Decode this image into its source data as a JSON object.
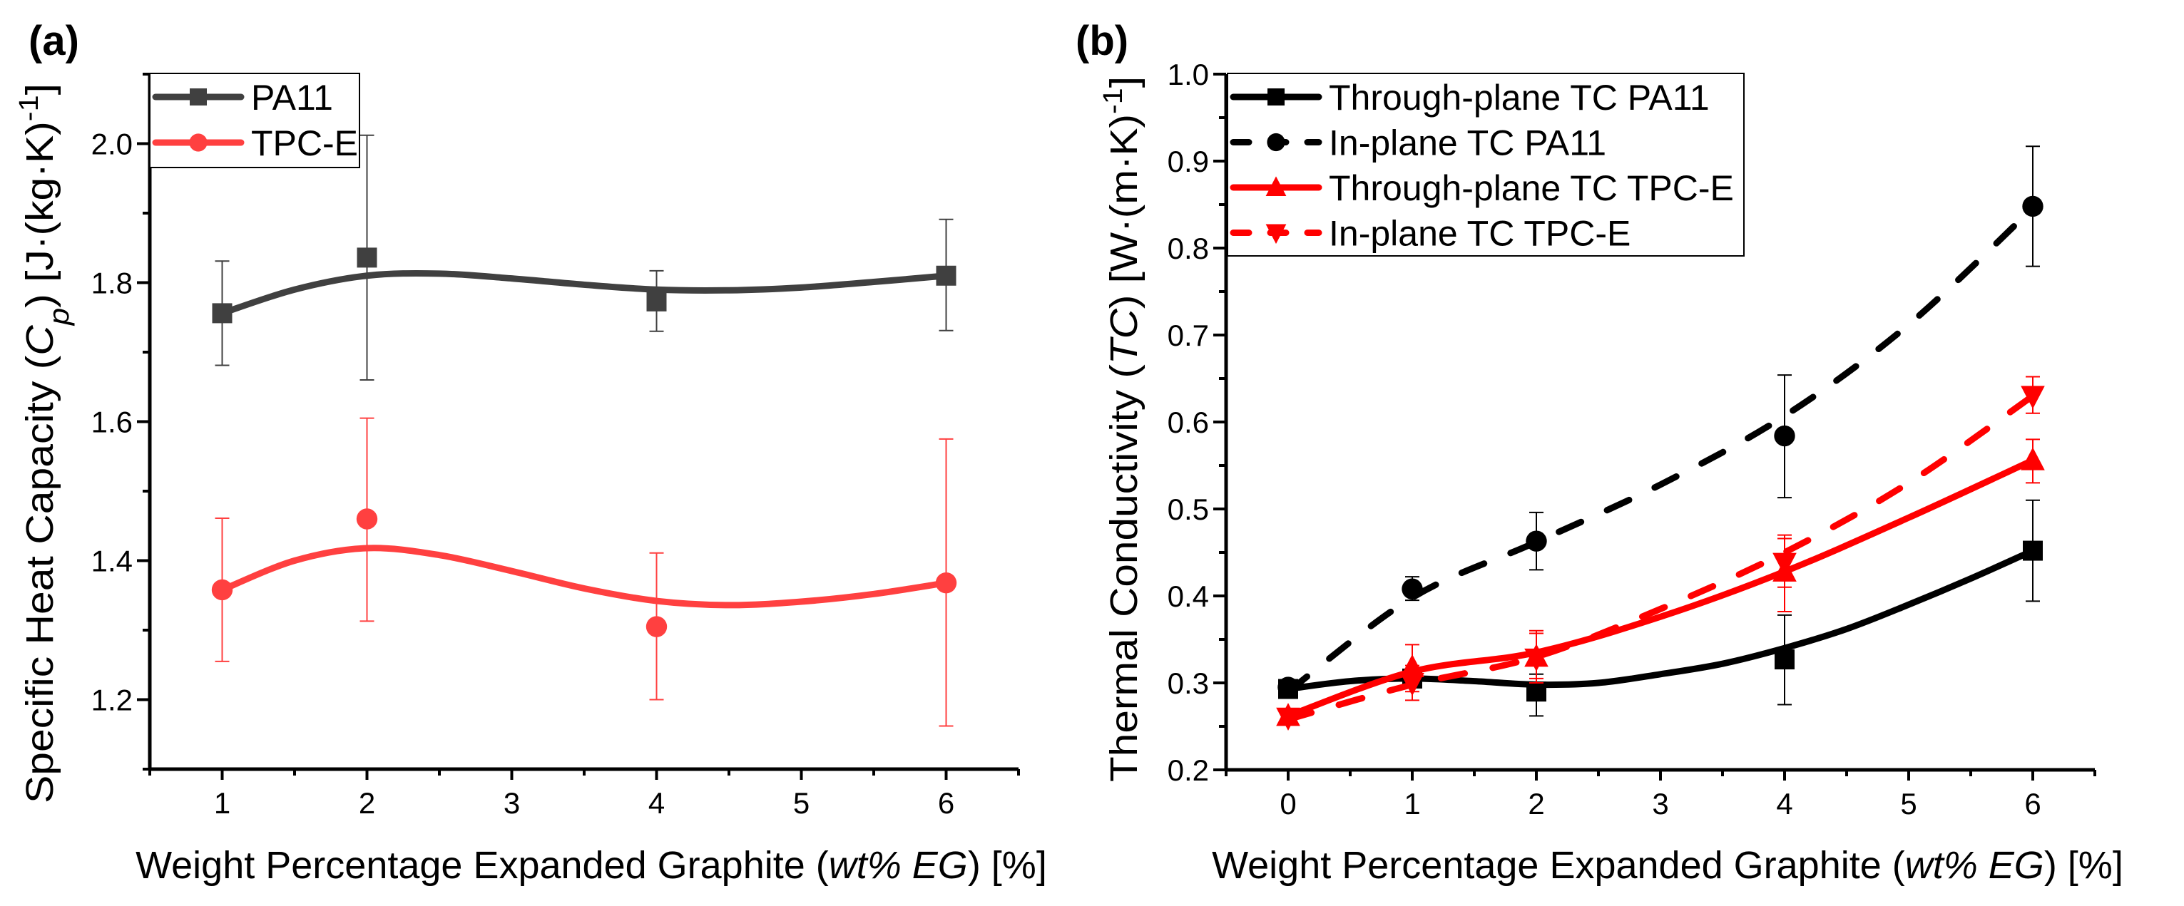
{
  "chart_data": [
    {
      "type": "line",
      "panel_label": "(a)",
      "xlabel_parts": [
        {
          "text": "Weight Percentage Expanded Graphite (",
          "style": "normal"
        },
        {
          "text": "wt% EG",
          "style": "italic"
        },
        {
          "text": ") [%]",
          "style": "normal"
        }
      ],
      "ylabel_parts": [
        {
          "text": "Specific Heat Capacity (",
          "style": "normal"
        },
        {
          "text": "C",
          "style": "italic"
        },
        {
          "text": "p",
          "style": "italic-sub"
        },
        {
          "text": ") [J·(kg·K)",
          "style": "normal"
        },
        {
          "text": "-1",
          "style": "sup"
        },
        {
          "text": "]",
          "style": "normal"
        }
      ],
      "xlim": [
        0.5,
        6.5
      ],
      "ylim": [
        1.1,
        2.1
      ],
      "xticks": [
        1,
        2,
        3,
        4,
        5,
        6
      ],
      "xtick_labels": [
        "1",
        "2",
        "3",
        "4",
        "5",
        "6"
      ],
      "yticks": [
        1.2,
        1.4,
        1.6,
        1.8,
        2.0
      ],
      "ytick_labels": [
        "1.2",
        "1.4",
        "1.6",
        "1.8",
        "2.0"
      ],
      "grid": false,
      "legend_position": "top-left",
      "series": [
        {
          "name": "PA11",
          "color": "#404040",
          "marker": "square",
          "dash": false,
          "x": [
            1,
            2,
            4,
            6
          ],
          "y": [
            1.756,
            1.836,
            1.773,
            1.81
          ],
          "err_low": [
            1.681,
            1.66,
            1.73,
            1.731
          ],
          "err_high": [
            1.831,
            2.012,
            1.817,
            1.891
          ],
          "fit_x": [
            1,
            1.5,
            2,
            2.5,
            3,
            3.5,
            4,
            4.5,
            5,
            5.5,
            6
          ],
          "fit_y": [
            1.756,
            1.79,
            1.81,
            1.813,
            1.806,
            1.797,
            1.79,
            1.789,
            1.793,
            1.801,
            1.81
          ]
        },
        {
          "name": "TPC-E",
          "color": "#ff4040",
          "marker": "circle",
          "dash": false,
          "x": [
            1,
            2,
            4,
            6
          ],
          "y": [
            1.358,
            1.46,
            1.305,
            1.368
          ],
          "err_low": [
            1.255,
            1.313,
            1.2,
            1.162
          ],
          "err_high": [
            1.461,
            1.605,
            1.411,
            1.575
          ],
          "fit_x": [
            1,
            1.5,
            2,
            2.5,
            3,
            3.5,
            4,
            4.5,
            5,
            5.5,
            6
          ],
          "fit_y": [
            1.358,
            1.4,
            1.418,
            1.408,
            1.385,
            1.36,
            1.342,
            1.336,
            1.341,
            1.352,
            1.368
          ]
        }
      ]
    },
    {
      "type": "line",
      "panel_label": "(b)",
      "xlabel_parts": [
        {
          "text": "Weight Percentage Expanded Graphite (",
          "style": "normal"
        },
        {
          "text": "wt% EG",
          "style": "italic"
        },
        {
          "text": ") [%]",
          "style": "normal"
        }
      ],
      "ylabel_parts": [
        {
          "text": "Thermal Conductivity (",
          "style": "normal"
        },
        {
          "text": "TC",
          "style": "italic"
        },
        {
          "text": ") [W·(m·K)",
          "style": "normal"
        },
        {
          "text": "-1",
          "style": "sup"
        },
        {
          "text": "]",
          "style": "normal"
        }
      ],
      "xlim": [
        -0.5,
        6.5
      ],
      "ylim": [
        0.2,
        1.0
      ],
      "xticks": [
        0,
        1,
        2,
        3,
        4,
        5,
        6
      ],
      "xtick_labels": [
        "0",
        "1",
        "2",
        "3",
        "4",
        "5",
        "6"
      ],
      "yticks": [
        0.2,
        0.3,
        0.4,
        0.5,
        0.6,
        0.7,
        0.8,
        0.9,
        1.0
      ],
      "ytick_labels": [
        "0.2",
        "0.3",
        "0.4",
        "0.5",
        "0.6",
        "0.7",
        "0.8",
        "0.9",
        "1.0"
      ],
      "grid": false,
      "legend_position": "top-left",
      "series": [
        {
          "name": "Through-plane TC PA11",
          "color": "#000000",
          "marker": "square",
          "dash": false,
          "x": [
            0,
            1,
            2,
            4,
            6
          ],
          "y": [
            0.293,
            0.305,
            0.29,
            0.327,
            0.452
          ],
          "err_low": [
            0.288,
            0.3,
            0.262,
            0.275,
            0.394
          ],
          "err_high": [
            0.298,
            0.31,
            0.31,
            0.378,
            0.51
          ],
          "fit_x": [
            0,
            0.5,
            1,
            1.5,
            2,
            2.5,
            3,
            3.5,
            4,
            4.5,
            5,
            5.5,
            6
          ],
          "fit_y": [
            0.293,
            0.302,
            0.305,
            0.302,
            0.298,
            0.3,
            0.31,
            0.322,
            0.34,
            0.362,
            0.39,
            0.42,
            0.452
          ]
        },
        {
          "name": "In-plane TC PA11",
          "color": "#000000",
          "marker": "circle",
          "dash": true,
          "x": [
            0,
            1,
            2,
            4,
            6
          ],
          "y": [
            0.295,
            0.408,
            0.463,
            0.584,
            0.848
          ],
          "err_low": [
            0.29,
            0.395,
            0.43,
            0.513,
            0.779
          ],
          "err_high": [
            0.3,
            0.422,
            0.496,
            0.654,
            0.917
          ],
          "fit_x": [
            0,
            1,
            2,
            3,
            4,
            5,
            6
          ],
          "fit_y": [
            0.29,
            0.398,
            0.462,
            0.528,
            0.607,
            0.712,
            0.846
          ]
        },
        {
          "name": "Through-plane TC TPC-E",
          "color": "#ff0000",
          "marker": "triangle-up",
          "dash": false,
          "x": [
            0,
            1,
            2,
            4,
            6
          ],
          "y": [
            0.262,
            0.318,
            0.33,
            0.428,
            0.556
          ],
          "err_low": [
            0.258,
            0.29,
            0.305,
            0.382,
            0.53
          ],
          "err_high": [
            0.266,
            0.344,
            0.357,
            0.466,
            0.58
          ],
          "fit_x": [
            0,
            1,
            2,
            3,
            4,
            5,
            6
          ],
          "fit_y": [
            0.262,
            0.313,
            0.335,
            0.376,
            0.428,
            0.49,
            0.556
          ]
        },
        {
          "name": "In-plane TC TPC-E",
          "color": "#ff0000",
          "marker": "triangle-down",
          "dash": true,
          "x": [
            0,
            1,
            2,
            4,
            6
          ],
          "y": [
            0.26,
            0.3,
            0.328,
            0.438,
            0.63
          ],
          "err_low": [
            0.256,
            0.28,
            0.3,
            0.41,
            0.61
          ],
          "err_high": [
            0.264,
            0.32,
            0.36,
            0.47,
            0.652
          ],
          "fit_x": [
            0,
            1,
            2,
            3,
            4,
            5,
            6
          ],
          "fit_y": [
            0.258,
            0.298,
            0.33,
            0.385,
            0.45,
            0.53,
            0.63
          ]
        }
      ]
    }
  ]
}
